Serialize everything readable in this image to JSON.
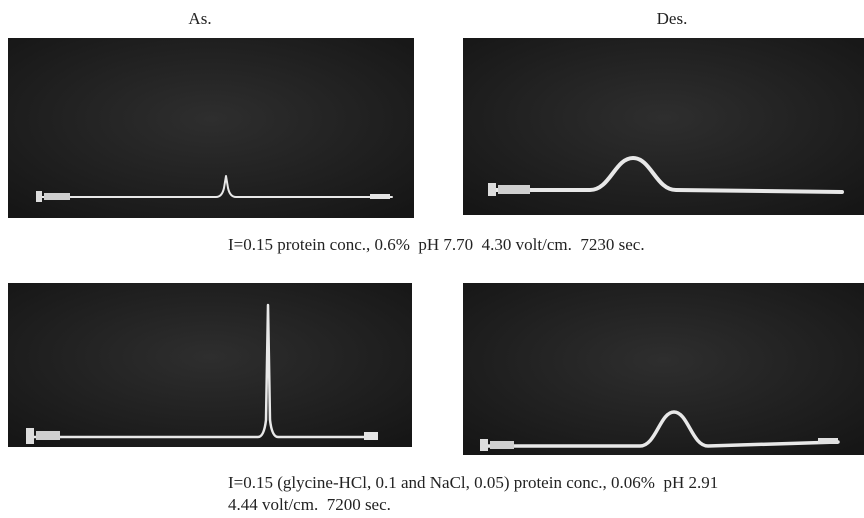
{
  "column_labels": [
    "As.",
    "Des."
  ],
  "captions": [
    {
      "lines": [
        "I=0.15 protein conc., 0.6%  pH 7.70  4.30 volt/cm.  7230 sec."
      ]
    },
    {
      "lines": [
        "I=0.15 (glycine-HCl, 0.1 and NaCl, 0.05) protein conc., 0.06%  pH 2.91",
        "4.44 volt/cm.  7200 sec."
      ]
    }
  ]
}
